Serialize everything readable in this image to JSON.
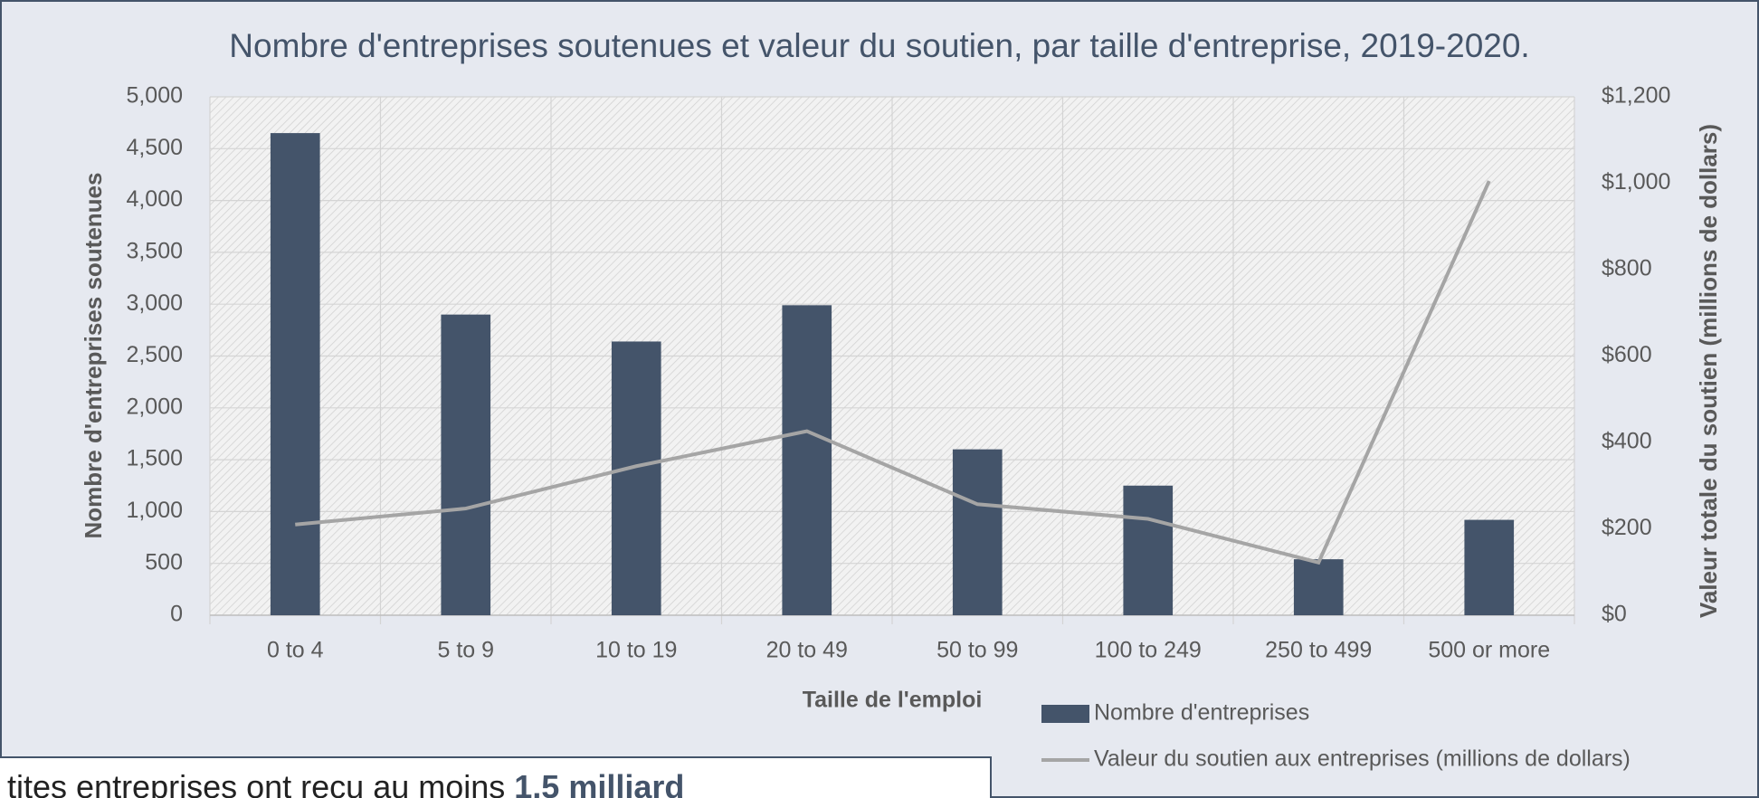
{
  "chart_data": {
    "type": "bar",
    "title": "Nombre d'entreprises soutenues et valeur du soutien, par taille d'entreprise, 2019-2020.",
    "xlabel": "Taille de l'emploi",
    "ylabel": "Nombre d'entreprises soutenues",
    "y2label": "Valeur totale du soutien (millions de dollars)",
    "categories": [
      "0 to 4",
      "5 to 9",
      "10 to 19",
      "20 to 49",
      "50 to 99",
      "100 to 249",
      "250 to 499",
      "500 or more"
    ],
    "series": [
      {
        "name": "Nombre d'entreprises",
        "type": "bar",
        "color": "#44546a",
        "values": [
          4650,
          2900,
          2640,
          2990,
          1600,
          1250,
          540,
          920
        ]
      },
      {
        "name": "Valeur du soutien aux entreprises (millions de dollars)",
        "type": "line",
        "axis": "y2",
        "color": "#a5a5a5",
        "values": [
          210,
          247,
          345,
          426,
          257,
          223,
          122,
          1005
        ]
      }
    ],
    "ylim": [
      0,
      5000
    ],
    "yticks": [
      0,
      500,
      {
        "value": 1000,
        "label": "1,000"
      },
      {
        "value": 1500,
        "label": "1,500"
      },
      {
        "value": 2000,
        "label": "2,000"
      },
      {
        "value": 2500,
        "label": "2,500"
      },
      {
        "value": 3000,
        "label": "3,000"
      },
      {
        "value": 3500,
        "label": "3,500"
      },
      {
        "value": 4000,
        "label": "4,000"
      },
      {
        "value": 4500,
        "label": "4,500"
      },
      {
        "value": 5000,
        "label": "5,000"
      }
    ],
    "y2lim": [
      0,
      1200
    ],
    "y2ticks": [
      {
        "value": 0,
        "label": "$0"
      },
      {
        "value": 200,
        "label": "$200"
      },
      {
        "value": 400,
        "label": "$400"
      },
      {
        "value": 600,
        "label": "$600"
      },
      {
        "value": 800,
        "label": "$800"
      },
      {
        "value": 1000,
        "label": "$1,000"
      },
      {
        "value": 1200,
        "label": "$1,200"
      }
    ],
    "grid": true,
    "legend": "bottom-right"
  },
  "callout": {
    "text": "tites entreprises ont reçu au moins",
    "highlight": "1,5 milliard"
  }
}
